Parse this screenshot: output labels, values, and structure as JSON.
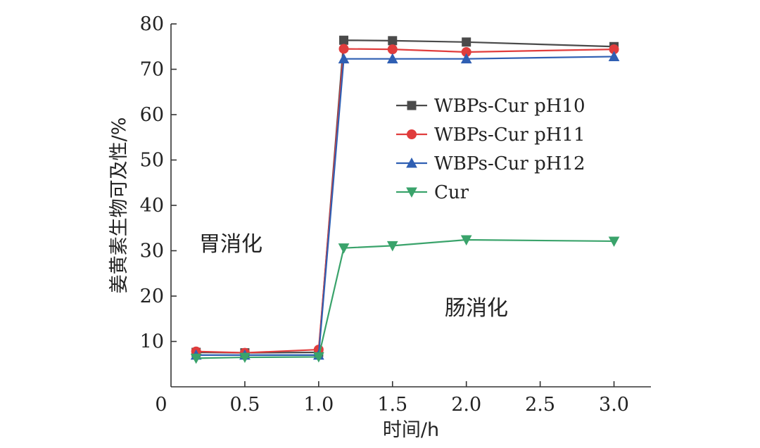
{
  "chart_data": {
    "type": "line",
    "title": "",
    "xlabel": "时间/h",
    "ylabel": "姜黄素生物可及性/%",
    "xlim": [
      0,
      3.25
    ],
    "ylim": [
      0,
      80
    ],
    "xticks": [
      {
        "value": 0,
        "label": "0"
      },
      {
        "value": 0.5,
        "label": "0.5"
      },
      {
        "value": 1.0,
        "label": "1.0"
      },
      {
        "value": 1.5,
        "label": "1.5"
      },
      {
        "value": 2.0,
        "label": "2.0"
      },
      {
        "value": 2.5,
        "label": "2.5"
      },
      {
        "value": 3.0,
        "label": "3.0"
      }
    ],
    "yticks": [
      {
        "value": 10,
        "label": "10"
      },
      {
        "value": 20,
        "label": "20"
      },
      {
        "value": 30,
        "label": "30"
      },
      {
        "value": 40,
        "label": "40"
      },
      {
        "value": 50,
        "label": "50"
      },
      {
        "value": 60,
        "label": "60"
      },
      {
        "value": 70,
        "label": "70"
      },
      {
        "value": 80,
        "label": "80"
      }
    ],
    "x": [
      0.17,
      0.5,
      1.0,
      1.17,
      1.5,
      2.0,
      3.0
    ],
    "series": [
      {
        "name": "WBPs-Cur pH10",
        "color": "#4a4a4a",
        "marker": "square",
        "values": [
          7.6,
          7.5,
          7.6,
          76.4,
          76.3,
          76.0,
          75.0
        ]
      },
      {
        "name": "WBPs-Cur pH11",
        "color": "#e03c3c",
        "marker": "circle",
        "values": [
          7.8,
          7.5,
          8.2,
          74.5,
          74.4,
          73.8,
          74.4
        ]
      },
      {
        "name": "WBPs-Cur pH12",
        "color": "#2f5fb3",
        "marker": "triangle-up",
        "values": [
          7.0,
          7.0,
          7.0,
          72.3,
          72.3,
          72.3,
          72.8
        ]
      },
      {
        "name": "Cur",
        "color": "#3aa36b",
        "marker": "triangle-down",
        "values": [
          6.3,
          6.5,
          6.6,
          30.6,
          31.1,
          32.4,
          32.1
        ]
      }
    ],
    "annotations": [
      {
        "text": "胃消化",
        "near": "left-middle"
      },
      {
        "text": "肠消化",
        "near": "center-lower"
      }
    ],
    "legend_position": "center-right",
    "grid": false
  }
}
